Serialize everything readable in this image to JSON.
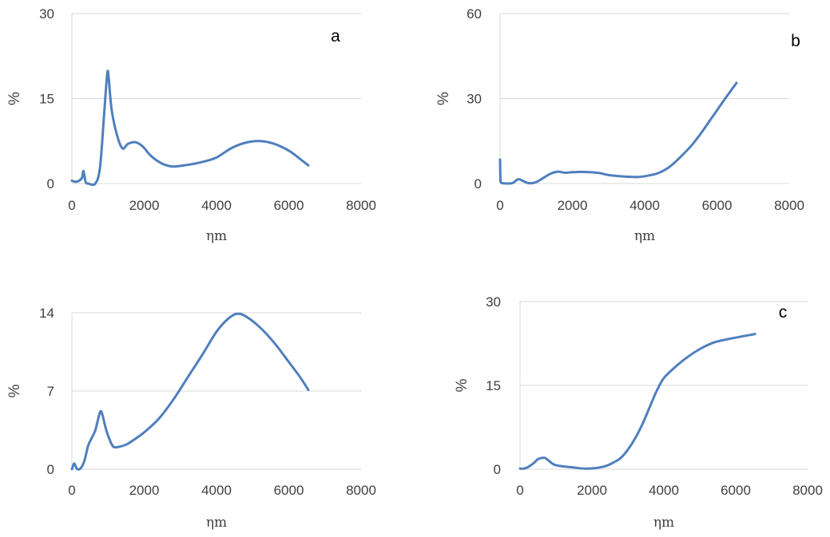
{
  "chart_data": [
    {
      "type": "line",
      "panel_label": "a",
      "xlabel": "ηm",
      "ylabel": "%",
      "xlim": [
        0,
        8000
      ],
      "ylim": [
        0,
        30
      ],
      "xticks": [
        0,
        2000,
        4000,
        6000,
        8000
      ],
      "yticks": [
        0,
        15,
        30
      ],
      "grid": "horizontal",
      "line_color": "#4f7fbd",
      "series": [
        {
          "x": [
            0,
            100,
            200,
            280,
            320,
            380,
            450,
            650,
            780,
            900,
            980,
            1020,
            1100,
            1250,
            1400,
            1550,
            1750,
            1950,
            2200,
            2500,
            2800,
            3200,
            3600,
            4000,
            4400,
            4800,
            5200,
            5600,
            6000,
            6300,
            6540
          ],
          "y": [
            0.5,
            0.3,
            0.5,
            1.0,
            2.2,
            0.3,
            0,
            0,
            3.0,
            13.0,
            19.5,
            18.5,
            13.0,
            8.5,
            6.2,
            7.0,
            7.3,
            6.6,
            4.8,
            3.5,
            3.0,
            3.3,
            3.8,
            4.6,
            6.2,
            7.2,
            7.5,
            7.0,
            5.8,
            4.4,
            3.2
          ]
        }
      ]
    },
    {
      "type": "line",
      "panel_label": "b",
      "xlabel": "ηm",
      "ylabel": "%",
      "xlim": [
        0,
        8000
      ],
      "ylim": [
        0,
        60
      ],
      "xticks": [
        0,
        2000,
        4000,
        6000,
        8000
      ],
      "yticks": [
        0,
        30,
        60
      ],
      "grid": "horizontal",
      "line_color": "#4f7fbd",
      "series": [
        {
          "x": [
            0,
            10,
            30,
            80,
            200,
            350,
            500,
            650,
            800,
            1000,
            1200,
            1400,
            1600,
            1800,
            2000,
            2300,
            2700,
            3000,
            3400,
            3800,
            4100,
            4400,
            4700,
            5000,
            5300,
            5600,
            5900,
            6200,
            6540
          ],
          "y": [
            8.5,
            1.5,
            0.3,
            0.1,
            0.0,
            0.2,
            1.5,
            0.8,
            0.1,
            0.5,
            2.0,
            3.5,
            4.2,
            3.8,
            4.0,
            4.1,
            3.8,
            3.0,
            2.5,
            2.3,
            2.8,
            3.8,
            6.0,
            9.5,
            13.5,
            18.5,
            24.0,
            29.5,
            35.5
          ]
        }
      ]
    },
    {
      "type": "line",
      "panel_label": "",
      "xlabel": "ηm",
      "ylabel": "%",
      "xlim": [
        0,
        8000
      ],
      "ylim": [
        0,
        14
      ],
      "xticks": [
        0,
        2000,
        4000,
        6000,
        8000
      ],
      "yticks": [
        0,
        7,
        14
      ],
      "grid": "horizontal",
      "line_color": "#4f7fbd",
      "series": [
        {
          "x": [
            0,
            60,
            100,
            150,
            250,
            350,
            450,
            550,
            650,
            750,
            800,
            850,
            950,
            1050,
            1150,
            1300,
            1500,
            1700,
            2000,
            2400,
            2800,
            3200,
            3600,
            4000,
            4300,
            4550,
            4800,
            5200,
            5600,
            6000,
            6300,
            6540
          ],
          "y": [
            0,
            0.5,
            0.3,
            0,
            0.1,
            0.8,
            2.1,
            2.8,
            3.5,
            4.8,
            5.2,
            4.8,
            3.5,
            2.6,
            2.0,
            2.0,
            2.2,
            2.6,
            3.3,
            4.5,
            6.2,
            8.2,
            10.2,
            12.3,
            13.4,
            13.9,
            13.7,
            12.7,
            11.3,
            9.6,
            8.3,
            7.1
          ]
        }
      ]
    },
    {
      "type": "line",
      "panel_label": "c",
      "xlabel": "ηm",
      "ylabel": "%",
      "xlim": [
        0,
        8000
      ],
      "ylim": [
        0,
        30
      ],
      "xticks": [
        0,
        2000,
        4000,
        6000,
        8000
      ],
      "yticks": [
        0,
        15,
        30
      ],
      "grid": "horizontal",
      "line_color": "#4f7fbd",
      "series": [
        {
          "x": [
            0,
            100,
            200,
            300,
            400,
            500,
            600,
            700,
            800,
            900,
            1000,
            1200,
            1500,
            1800,
            2100,
            2400,
            2600,
            2800,
            3000,
            3200,
            3400,
            3600,
            3800,
            4000,
            4300,
            4600,
            5000,
            5400,
            5800,
            6200,
            6540
          ],
          "y": [
            0.1,
            0.1,
            0.3,
            0.7,
            1.2,
            1.8,
            2.0,
            2.0,
            1.5,
            1.0,
            0.7,
            0.5,
            0.3,
            0.1,
            0.2,
            0.6,
            1.2,
            2.0,
            3.5,
            5.5,
            8.0,
            11.0,
            14.0,
            16.3,
            18.2,
            19.8,
            21.5,
            22.7,
            23.3,
            23.8,
            24.2
          ]
        }
      ]
    }
  ]
}
